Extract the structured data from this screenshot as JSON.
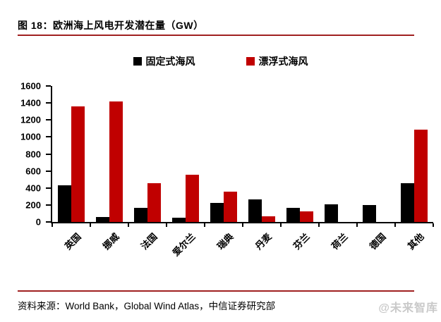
{
  "title": "图 18：欧洲海上风电开发潜在量（GW）",
  "source": "资料来源：World Bank，Global Wind Atlas，中信证券研究部",
  "watermark": "@未来智库",
  "colors": {
    "fixed_series": "#000000",
    "floating_series": "#C00000",
    "rule": "#A02020",
    "watermark": "#C9C9C9",
    "axis": "#000000"
  },
  "chart_data": {
    "type": "bar",
    "title": "欧洲海上风电开发潜在量（GW）",
    "categories": [
      "英国",
      "挪威",
      "法国",
      "爱尔兰",
      "瑞典",
      "丹麦",
      "芬兰",
      "荷兰",
      "德国",
      "其他"
    ],
    "series": [
      {
        "name": "固定式海风",
        "color": "#000000",
        "values": [
          435,
          60,
          170,
          50,
          225,
          265,
          165,
          205,
          200,
          455
        ]
      },
      {
        "name": "漂浮式海风",
        "color": "#C00000",
        "values": [
          1360,
          1420,
          455,
          555,
          355,
          70,
          125,
          0,
          0,
          1090
        ]
      }
    ],
    "xlabel": "",
    "ylabel": "",
    "ylim": [
      0,
      1600
    ],
    "yticks": [
      0,
      200,
      400,
      600,
      800,
      1000,
      1200,
      1400,
      1600
    ],
    "legend_position": "top",
    "grid": false
  }
}
